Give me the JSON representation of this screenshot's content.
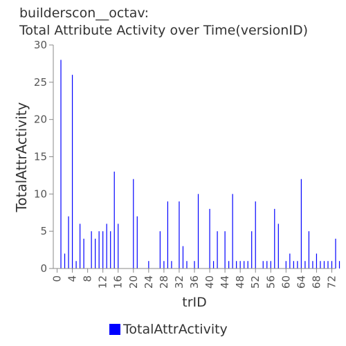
{
  "chart_data": {
    "type": "bar",
    "title_lines": [
      "builderscon__octav:",
      "Total Attribute Activity over Time(versionID)"
    ],
    "xlabel": "trID",
    "ylabel": "TotalAttrActivity",
    "ylim": [
      0,
      30
    ],
    "yticks": [
      0,
      5,
      10,
      15,
      20,
      25,
      30
    ],
    "xlim": [
      -1,
      73
    ],
    "xticks": [
      0,
      4,
      8,
      12,
      16,
      20,
      24,
      28,
      32,
      36,
      40,
      44,
      48,
      52,
      56,
      60,
      64,
      68,
      72
    ],
    "grid": false,
    "legend_position": "bottom",
    "series": [
      {
        "name": "TotalAttrActivity",
        "color": "#0000ff",
        "x": [
          1,
          2,
          3,
          4,
          5,
          6,
          7,
          9,
          10,
          11,
          12,
          13,
          14,
          15,
          16,
          20,
          21,
          24,
          27,
          28,
          29,
          30,
          32,
          33,
          34,
          36,
          37,
          40,
          41,
          42,
          44,
          45,
          46,
          47,
          48,
          49,
          50,
          51,
          52,
          54,
          55,
          56,
          57,
          58,
          60,
          61,
          62,
          63,
          64,
          65,
          66,
          67,
          68,
          69,
          70,
          71,
          72,
          73,
          74
        ],
        "values": [
          28,
          2,
          7,
          26,
          1,
          6,
          4,
          5,
          4,
          5,
          5,
          6,
          5,
          13,
          6,
          12,
          7,
          1,
          5,
          1,
          9,
          1,
          9,
          3,
          1,
          1,
          10,
          8,
          1,
          5,
          5,
          1,
          10,
          1,
          1,
          1,
          1,
          5,
          9,
          1,
          1,
          1,
          8,
          6,
          1,
          2,
          1,
          1,
          12,
          1,
          5,
          1,
          2,
          1,
          1,
          1,
          1,
          4,
          1
        ]
      }
    ]
  }
}
